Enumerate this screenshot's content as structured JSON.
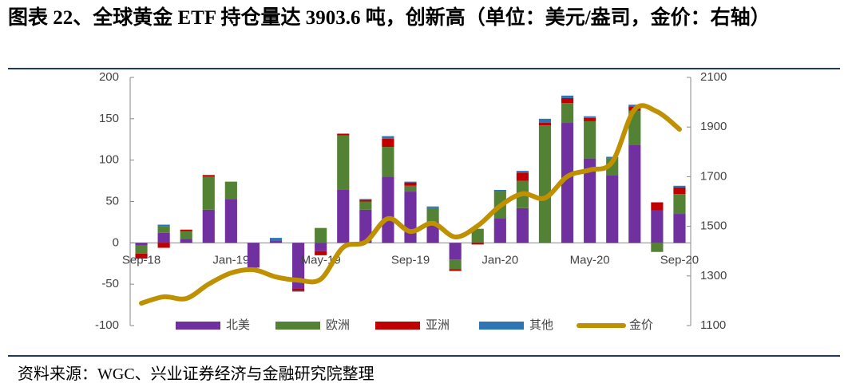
{
  "title": "图表 22、全球黄金 ETF 持仓量达 3903.6 吨，创新高（单位：美元/盎司，金价：右轴）",
  "source": "资料来源：WGC、兴业证券经济与金融研究院整理",
  "chart_data": {
    "type": "bar-line",
    "categories": [
      "Sep-18",
      null,
      null,
      null,
      "Jan-19",
      null,
      null,
      null,
      "May-19",
      null,
      null,
      null,
      "Sep-19",
      null,
      null,
      null,
      "Jan-20",
      null,
      null,
      null,
      "May-20",
      null,
      null,
      null,
      "Sep-20"
    ],
    "series": [
      {
        "name": "北美",
        "color": "#7030a0",
        "values": [
          -3,
          12,
          5,
          40,
          53,
          -30,
          3,
          -55,
          -10,
          64,
          40,
          80,
          62,
          26,
          -20,
          0,
          30,
          42,
          0,
          145,
          102,
          82,
          118,
          39,
          35
        ]
      },
      {
        "name": "欧洲",
        "color": "#548235",
        "values": [
          -10,
          8,
          9,
          40,
          21,
          0,
          0,
          0,
          18,
          66,
          10,
          36,
          7,
          16,
          -12,
          17,
          32,
          33,
          142,
          24,
          45,
          20,
          42,
          -11,
          24
        ]
      },
      {
        "name": "亚洲",
        "color": "#c00000",
        "values": [
          -6,
          -6,
          2,
          2,
          0,
          0,
          0,
          -3,
          -5,
          2,
          2,
          10,
          4,
          0,
          -2,
          -2,
          0,
          10,
          3,
          6,
          4,
          0,
          5,
          10,
          8
        ]
      },
      {
        "name": "其他",
        "color": "#2e75b6",
        "values": [
          0,
          2,
          0,
          0,
          0,
          0,
          3,
          -1,
          0,
          0,
          1,
          3,
          1,
          2,
          0,
          0,
          2,
          2,
          5,
          3,
          2,
          2,
          2,
          0,
          2
        ]
      },
      {
        "name": "金价",
        "color": "#bf9000",
        "type": "line",
        "axis": "y2",
        "values": [
          1190,
          1216,
          1209,
          1267,
          1312,
          1325,
          1296,
          1283,
          1287,
          1415,
          1437,
          1531,
          1479,
          1512,
          1457,
          1502,
          1582,
          1631,
          1614,
          1701,
          1727,
          1759,
          1971,
          1962,
          1891
        ]
      }
    ],
    "ylim": [
      -100,
      200
    ],
    "yticks": [
      -100,
      -50,
      0,
      50,
      100,
      150,
      200
    ],
    "y2lim": [
      1100,
      2100
    ],
    "y2ticks": [
      1100,
      1300,
      1500,
      1700,
      1900,
      2100
    ],
    "legend": "bottom"
  }
}
